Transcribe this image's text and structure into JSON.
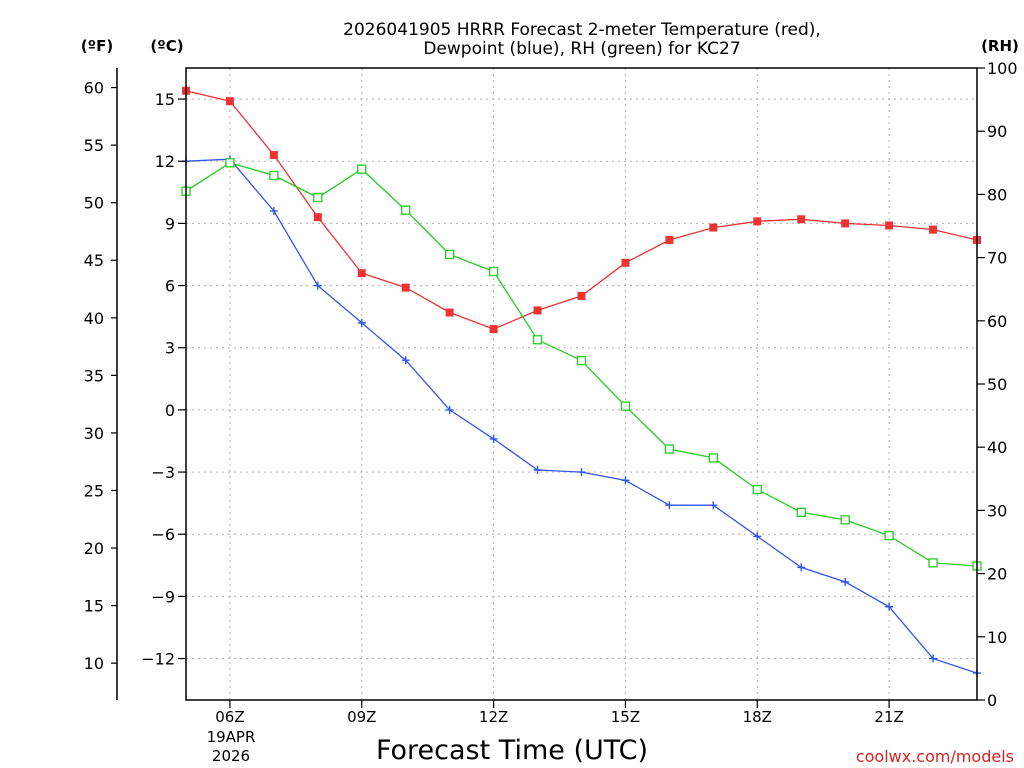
{
  "chart_data": {
    "type": "line",
    "title_line1": "2026041905 HRRR Forecast 2-meter Temperature (red),",
    "title_line2": "Dewpoint (blue), RH (green) for KC27",
    "xlabel": "Forecast Time (UTC)",
    "watermark": "coolwx.com/models",
    "unit_f": "(ºF)",
    "unit_c": "(ºC)",
    "unit_rh": "(RH)",
    "date_label_1": "19APR",
    "date_label_2": "2026",
    "x_range": [
      5,
      23
    ],
    "c_range": [
      -14,
      16.5
    ],
    "f_range": [
      6.8,
      61.7
    ],
    "rh_range": [
      0,
      100
    ],
    "x_ticks": [
      {
        "x": 6,
        "label": "06Z"
      },
      {
        "x": 9,
        "label": "09Z"
      },
      {
        "x": 12,
        "label": "12Z"
      },
      {
        "x": 15,
        "label": "15Z"
      },
      {
        "x": 18,
        "label": "18Z"
      },
      {
        "x": 21,
        "label": "21Z"
      }
    ],
    "c_ticks": [
      15,
      12,
      9,
      6,
      3,
      0,
      -3,
      -6,
      -9,
      -12
    ],
    "c_tick_labels": [
      "15",
      "12",
      "9",
      "6",
      "3",
      "0",
      "−3",
      "−6",
      "−9",
      "−12"
    ],
    "f_ticks": [
      60,
      55,
      50,
      45,
      40,
      35,
      30,
      25,
      20,
      15,
      10
    ],
    "f_tick_labels": [
      "60",
      "55",
      "50",
      "45",
      "40",
      "35",
      "30",
      "25",
      "20",
      "15",
      "10"
    ],
    "rh_ticks": [
      100,
      90,
      80,
      70,
      60,
      50,
      40,
      30,
      20,
      10,
      0
    ],
    "rh_tick_labels": [
      "100",
      "90",
      "80",
      "70",
      "60",
      "50",
      "40",
      "30",
      "20",
      "10",
      "0"
    ],
    "x": [
      5,
      6,
      7,
      8,
      9,
      10,
      11,
      12,
      13,
      14,
      15,
      16,
      17,
      18,
      19,
      20,
      21,
      22,
      23
    ],
    "series": [
      {
        "name": "Temperature",
        "unit": "C",
        "color": "#ee3333",
        "marker": "square-filled",
        "values": [
          15.4,
          14.9,
          12.3,
          9.3,
          6.6,
          5.9,
          4.7,
          3.9,
          4.8,
          5.5,
          7.1,
          8.2,
          8.8,
          9.1,
          9.2,
          9.0,
          8.9,
          8.7,
          8.2
        ]
      },
      {
        "name": "Dewpoint",
        "unit": "C",
        "color": "#3355ee",
        "marker": "plus",
        "values": [
          12.0,
          12.1,
          9.6,
          6.0,
          4.2,
          2.4,
          0.0,
          -1.4,
          -2.9,
          -3.0,
          -3.4,
          -4.6,
          -4.6,
          -6.1,
          -7.6,
          -8.3,
          -9.5,
          -12.0,
          -12.7
        ]
      },
      {
        "name": "RH",
        "unit": "%",
        "color": "#22cc22",
        "marker": "square-open",
        "values": [
          80.5,
          85.0,
          83.0,
          79.5,
          84.0,
          77.5,
          70.5,
          67.8,
          57.0,
          53.7,
          46.5,
          39.7,
          38.3,
          33.3,
          29.7,
          28.5,
          26.0,
          21.7,
          21.2
        ]
      }
    ]
  }
}
